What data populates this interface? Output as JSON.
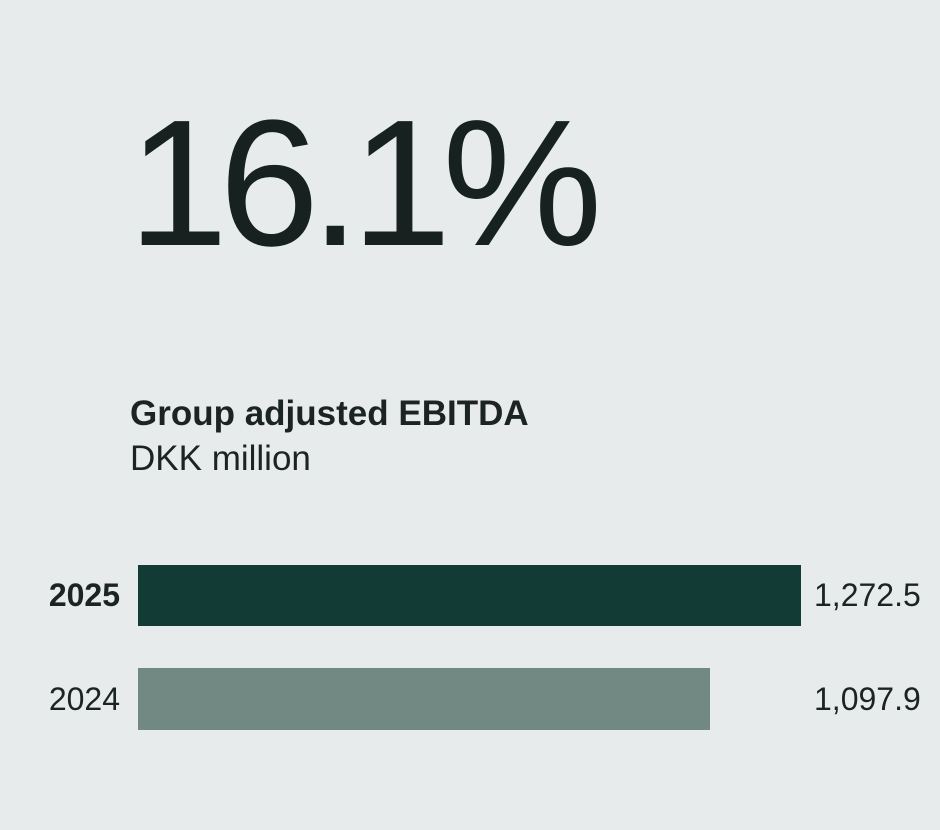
{
  "headline": "16.1%",
  "chart": {
    "title": "Group adjusted EBITDA",
    "subtitle": "DKK million"
  },
  "chart_data": {
    "type": "bar",
    "orientation": "horizontal",
    "title": "Group adjusted EBITDA",
    "unit": "DKK million",
    "categories": [
      "2025",
      "2024"
    ],
    "values": [
      1272.5,
      1097.9
    ],
    "value_labels": [
      "1,272.5",
      "1,097.9"
    ],
    "xlim": [
      0,
      1272.5
    ],
    "highlight_category": "2025",
    "legend": "none",
    "grid": false
  },
  "colors": {
    "background": "#e8ebeb",
    "bar_current": "#133b35",
    "bar_previous": "#728883",
    "text": "#1b2422"
  }
}
